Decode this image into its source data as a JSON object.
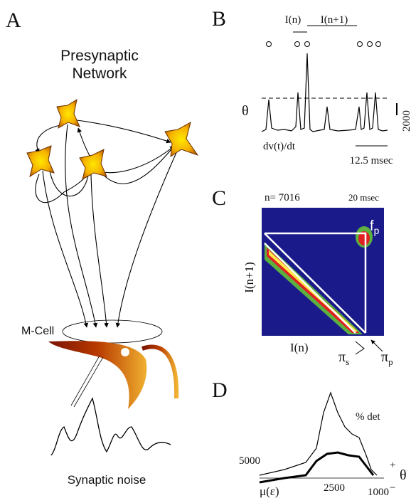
{
  "panel_a": {
    "label": "A",
    "title_lines": [
      "Presynaptic",
      "Network"
    ],
    "cell_label": "M-Cell",
    "noise_label": "Synaptic noise"
  },
  "panel_b": {
    "label": "B",
    "interval_n": "I(n)",
    "interval_n1": "I(n+1)",
    "threshold": "θ",
    "scale_value": "2000",
    "trace_label": "dv(t)/dt",
    "time_scale": "12.5 msec"
  },
  "panel_c": {
    "label": "C",
    "count": "n= 7016",
    "time_scale": "20 msec",
    "peak": {
      "base": "f",
      "sub": "p"
    },
    "y_label": "I(n+1)",
    "x_label": "I(n)",
    "pi_s": {
      "base": "π",
      "sub": "s"
    },
    "pi_p": {
      "base": "π",
      "sub": "p"
    }
  },
  "panel_d": {
    "label": "D",
    "curve_label": "% det",
    "left_value": "5000",
    "mid_value": "2500",
    "right_value": "1000",
    "x_label": "μ(ε)",
    "plus": "+",
    "minus": "−",
    "threshold": "θ"
  }
}
